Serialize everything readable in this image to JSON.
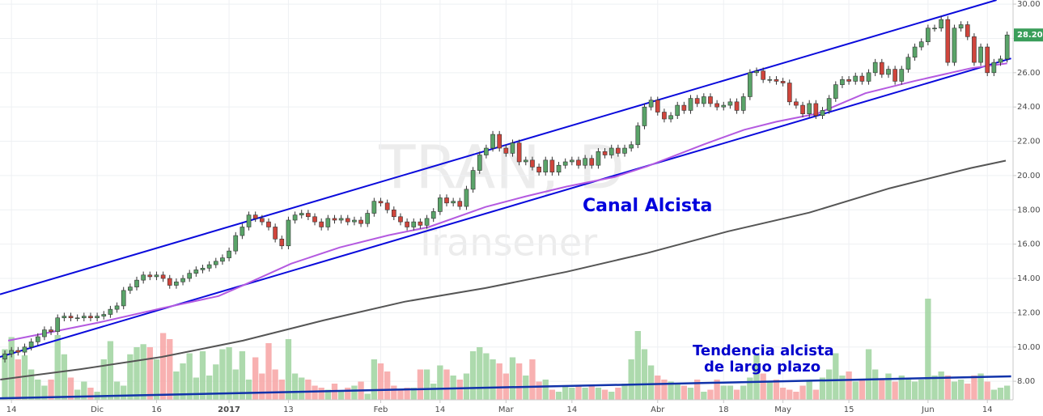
{
  "chart_data": {
    "type": "candlestick",
    "watermark": {
      "symbol": "TRAN, D",
      "name": "Transener"
    },
    "annotations": [
      {
        "text": "Canal Alcista",
        "color": "#0000dd"
      },
      {
        "text": "Tendencia alcista",
        "color": "#0000cc"
      },
      {
        "text": "de largo plazo",
        "color": "#0000cc"
      }
    ],
    "xlim": [
      -0.74,
      152.9
    ],
    "ylim": [
      6.92,
      30.24
    ],
    "volume_lim": [
      0,
      100
    ],
    "grid": true,
    "up_color": "#5aa469",
    "down_color": "#d0453c",
    "wick_color": "#333333",
    "volume_up_color": "#9fd39f",
    "volume_down_color": "#f7a3a3",
    "xticks": [
      {
        "value": 1,
        "label": "14"
      },
      {
        "value": 14,
        "label": "Dic"
      },
      {
        "value": 23,
        "label": "16"
      },
      {
        "value": 34,
        "label": "2017"
      },
      {
        "value": 43,
        "label": "13"
      },
      {
        "value": 57,
        "label": "Feb"
      },
      {
        "value": 66,
        "label": "14"
      },
      {
        "value": 76,
        "label": "Mar"
      },
      {
        "value": 86,
        "label": "14"
      },
      {
        "value": 99,
        "label": "Abr"
      },
      {
        "value": 109,
        "label": "18"
      },
      {
        "value": 118,
        "label": "May"
      },
      {
        "value": 128,
        "label": "15"
      },
      {
        "value": 140,
        "label": "Jun"
      },
      {
        "value": 149,
        "label": "14"
      }
    ],
    "yticks": [
      {
        "value": 8,
        "label": "8.00"
      },
      {
        "value": 10,
        "label": "10.00"
      },
      {
        "value": 12,
        "label": "12.00"
      },
      {
        "value": 14,
        "label": "14.00"
      },
      {
        "value": 16,
        "label": "16.00"
      },
      {
        "value": 18,
        "label": "18.00"
      },
      {
        "value": 20,
        "label": "20.00"
      },
      {
        "value": 22,
        "label": "22.00"
      },
      {
        "value": 24,
        "label": "24.00"
      },
      {
        "value": 26,
        "label": "26.00"
      },
      {
        "value": 28,
        "label": "28.00"
      },
      {
        "value": 30,
        "label": "30.00"
      }
    ],
    "last_price": {
      "value": 28.2,
      "label": "28.20",
      "color": "#3a9e5a"
    },
    "candles": [
      [
        9.3,
        9.8,
        9.1,
        9.6
      ],
      [
        9.6,
        10.0,
        9.4,
        9.8
      ],
      [
        9.8,
        10.0,
        9.5,
        9.7
      ],
      [
        9.7,
        10.2,
        9.5,
        10.0
      ],
      [
        10.0,
        10.5,
        9.8,
        10.3
      ],
      [
        10.3,
        10.8,
        10.1,
        10.6
      ],
      [
        10.6,
        11.2,
        10.4,
        11.0
      ],
      [
        11.0,
        11.2,
        10.7,
        10.9
      ],
      [
        10.9,
        11.9,
        10.7,
        11.7
      ],
      [
        11.7,
        12.0,
        11.5,
        11.8
      ],
      [
        11.8,
        12.0,
        11.5,
        11.7
      ],
      [
        11.7,
        11.9,
        11.5,
        11.7
      ],
      [
        11.7,
        12.0,
        11.5,
        11.8
      ],
      [
        11.8,
        12.0,
        11.5,
        11.7
      ],
      [
        11.7,
        12.0,
        11.5,
        11.8
      ],
      [
        11.8,
        12.1,
        11.6,
        11.9
      ],
      [
        11.9,
        12.4,
        11.7,
        12.2
      ],
      [
        12.2,
        12.6,
        12.0,
        12.4
      ],
      [
        12.4,
        13.5,
        12.2,
        13.3
      ],
      [
        13.3,
        13.7,
        13.1,
        13.5
      ],
      [
        13.5,
        14.1,
        13.3,
        13.9
      ],
      [
        13.9,
        14.4,
        13.7,
        14.2
      ],
      [
        14.2,
        14.4,
        13.9,
        14.1
      ],
      [
        14.1,
        14.4,
        13.9,
        14.2
      ],
      [
        14.2,
        14.4,
        13.8,
        14.0
      ],
      [
        14.0,
        14.2,
        13.4,
        13.6
      ],
      [
        13.6,
        14.0,
        13.4,
        13.8
      ],
      [
        13.8,
        14.2,
        13.6,
        14.0
      ],
      [
        14.0,
        14.5,
        13.8,
        14.3
      ],
      [
        14.3,
        14.7,
        14.1,
        14.5
      ],
      [
        14.5,
        14.8,
        14.3,
        14.6
      ],
      [
        14.6,
        15.0,
        14.4,
        14.8
      ],
      [
        14.8,
        15.2,
        14.6,
        15.0
      ],
      [
        15.0,
        15.4,
        14.8,
        15.2
      ],
      [
        15.2,
        15.8,
        15.0,
        15.6
      ],
      [
        15.6,
        16.7,
        15.4,
        16.5
      ],
      [
        16.5,
        17.2,
        16.3,
        17.0
      ],
      [
        17.0,
        17.9,
        16.8,
        17.7
      ],
      [
        17.7,
        17.9,
        17.3,
        17.5
      ],
      [
        17.5,
        17.7,
        17.1,
        17.3
      ],
      [
        17.3,
        17.5,
        16.8,
        17.0
      ],
      [
        17.0,
        17.2,
        16.1,
        16.3
      ],
      [
        16.3,
        16.5,
        15.7,
        15.9
      ],
      [
        15.9,
        17.6,
        15.7,
        17.4
      ],
      [
        17.4,
        17.9,
        17.2,
        17.7
      ],
      [
        17.7,
        18.0,
        17.5,
        17.8
      ],
      [
        17.8,
        18.0,
        17.4,
        17.6
      ],
      [
        17.6,
        17.8,
        17.1,
        17.3
      ],
      [
        17.3,
        17.5,
        16.8,
        17.0
      ],
      [
        17.0,
        17.7,
        16.8,
        17.5
      ],
      [
        17.5,
        17.7,
        17.2,
        17.4
      ],
      [
        17.4,
        17.7,
        17.2,
        17.5
      ],
      [
        17.5,
        17.7,
        17.1,
        17.3
      ],
      [
        17.3,
        17.6,
        17.1,
        17.4
      ],
      [
        17.4,
        17.6,
        17.0,
        17.2
      ],
      [
        17.2,
        18.0,
        17.0,
        17.8
      ],
      [
        17.8,
        18.7,
        17.6,
        18.5
      ],
      [
        18.5,
        18.7,
        18.2,
        18.4
      ],
      [
        18.4,
        18.6,
        17.8,
        18.0
      ],
      [
        18.0,
        18.2,
        17.4,
        17.6
      ],
      [
        17.6,
        17.8,
        17.1,
        17.3
      ],
      [
        17.3,
        17.5,
        16.8,
        17.0
      ],
      [
        17.0,
        17.5,
        16.8,
        17.3
      ],
      [
        17.3,
        17.5,
        16.9,
        17.1
      ],
      [
        17.1,
        17.7,
        16.9,
        17.5
      ],
      [
        17.5,
        18.1,
        17.3,
        17.9
      ],
      [
        17.9,
        18.9,
        17.7,
        18.7
      ],
      [
        18.7,
        18.9,
        18.2,
        18.4
      ],
      [
        18.4,
        18.7,
        18.2,
        18.5
      ],
      [
        18.5,
        18.7,
        18.0,
        18.2
      ],
      [
        18.2,
        19.4,
        18.0,
        19.2
      ],
      [
        19.2,
        20.5,
        19.0,
        20.3
      ],
      [
        20.3,
        21.4,
        20.1,
        21.2
      ],
      [
        21.2,
        21.8,
        21.0,
        21.6
      ],
      [
        21.6,
        22.6,
        21.4,
        22.4
      ],
      [
        22.4,
        22.6,
        21.4,
        21.6
      ],
      [
        21.6,
        21.8,
        21.1,
        21.3
      ],
      [
        21.3,
        22.1,
        21.1,
        21.9
      ],
      [
        21.9,
        22.1,
        20.6,
        20.8
      ],
      [
        20.8,
        21.1,
        20.6,
        20.9
      ],
      [
        20.9,
        21.1,
        20.3,
        20.5
      ],
      [
        20.5,
        20.7,
        20.0,
        20.2
      ],
      [
        20.2,
        21.1,
        20.0,
        20.9
      ],
      [
        20.9,
        21.1,
        20.0,
        20.2
      ],
      [
        20.2,
        20.8,
        20.0,
        20.6
      ],
      [
        20.6,
        21.0,
        20.4,
        20.8
      ],
      [
        20.8,
        21.1,
        20.6,
        20.9
      ],
      [
        20.9,
        21.1,
        20.4,
        20.6
      ],
      [
        20.6,
        21.2,
        20.4,
        21.0
      ],
      [
        21.0,
        21.2,
        20.4,
        20.6
      ],
      [
        20.6,
        21.6,
        20.4,
        21.4
      ],
      [
        21.4,
        21.6,
        21.0,
        21.2
      ],
      [
        21.2,
        21.8,
        21.0,
        21.6
      ],
      [
        21.6,
        21.8,
        21.1,
        21.3
      ],
      [
        21.3,
        21.8,
        21.1,
        21.6
      ],
      [
        21.6,
        22.0,
        21.4,
        21.8
      ],
      [
        21.8,
        23.1,
        21.6,
        22.9
      ],
      [
        22.9,
        24.2,
        22.7,
        24.0
      ],
      [
        24.0,
        24.6,
        23.8,
        24.4
      ],
      [
        24.4,
        24.6,
        23.5,
        23.7
      ],
      [
        23.7,
        23.9,
        23.1,
        23.3
      ],
      [
        23.3,
        23.7,
        23.1,
        23.5
      ],
      [
        23.5,
        24.3,
        23.3,
        24.1
      ],
      [
        24.1,
        24.3,
        23.6,
        23.8
      ],
      [
        23.8,
        24.7,
        23.6,
        24.5
      ],
      [
        24.5,
        24.7,
        24.0,
        24.2
      ],
      [
        24.2,
        24.8,
        24.0,
        24.6
      ],
      [
        24.6,
        24.8,
        24.0,
        24.2
      ],
      [
        24.2,
        24.4,
        23.8,
        24.0
      ],
      [
        24.0,
        24.3,
        23.8,
        24.1
      ],
      [
        24.1,
        24.5,
        23.9,
        24.3
      ],
      [
        24.3,
        24.5,
        23.6,
        23.8
      ],
      [
        23.8,
        24.8,
        23.6,
        24.6
      ],
      [
        24.6,
        26.2,
        24.4,
        26.0
      ],
      [
        26.0,
        26.3,
        25.8,
        26.1
      ],
      [
        26.1,
        26.3,
        25.4,
        25.6
      ],
      [
        25.6,
        25.8,
        25.4,
        25.6
      ],
      [
        25.6,
        25.8,
        25.3,
        25.5
      ],
      [
        25.5,
        25.7,
        25.2,
        25.4
      ],
      [
        25.4,
        25.6,
        24.1,
        24.3
      ],
      [
        24.3,
        24.5,
        23.9,
        24.1
      ],
      [
        24.1,
        24.3,
        23.4,
        23.6
      ],
      [
        23.6,
        24.4,
        23.4,
        24.2
      ],
      [
        24.2,
        24.4,
        23.3,
        23.5
      ],
      [
        23.5,
        24.0,
        23.3,
        23.8
      ],
      [
        23.8,
        24.7,
        23.6,
        24.5
      ],
      [
        24.5,
        25.5,
        24.3,
        25.3
      ],
      [
        25.3,
        25.8,
        25.1,
        25.6
      ],
      [
        25.6,
        25.8,
        25.3,
        25.5
      ],
      [
        25.5,
        26.0,
        25.3,
        25.8
      ],
      [
        25.8,
        26.0,
        25.3,
        25.5
      ],
      [
        25.5,
        26.2,
        25.3,
        26.0
      ],
      [
        26.0,
        26.8,
        25.8,
        26.6
      ],
      [
        26.6,
        26.8,
        25.7,
        25.9
      ],
      [
        25.9,
        26.4,
        25.7,
        26.2
      ],
      [
        26.2,
        26.4,
        25.3,
        25.5
      ],
      [
        25.5,
        26.4,
        25.3,
        26.2
      ],
      [
        26.2,
        27.1,
        26.0,
        26.9
      ],
      [
        26.9,
        27.7,
        26.7,
        27.5
      ],
      [
        27.5,
        28.0,
        27.3,
        27.8
      ],
      [
        27.8,
        28.8,
        27.6,
        28.6
      ],
      [
        28.6,
        28.8,
        28.4,
        28.6
      ],
      [
        28.6,
        29.3,
        28.4,
        29.1
      ],
      [
        29.1,
        29.3,
        26.4,
        26.6
      ],
      [
        26.6,
        28.8,
        26.4,
        28.6
      ],
      [
        28.6,
        29.0,
        28.4,
        28.8
      ],
      [
        28.8,
        29.0,
        27.9,
        28.1
      ],
      [
        28.1,
        28.3,
        26.4,
        26.6
      ],
      [
        26.6,
        27.7,
        26.4,
        27.5
      ],
      [
        27.5,
        27.7,
        25.8,
        26.0
      ],
      [
        26.0,
        26.8,
        25.8,
        26.6
      ],
      [
        26.6,
        27.0,
        26.4,
        26.8
      ],
      [
        26.8,
        28.4,
        26.6,
        28.2
      ]
    ],
    "volumes": [
      50,
      62,
      40,
      44,
      30,
      20,
      14,
      20,
      64,
      45,
      22,
      10,
      18,
      12,
      8,
      40,
      58,
      18,
      14,
      45,
      52,
      55,
      52,
      40,
      66,
      60,
      28,
      36,
      46,
      22,
      48,
      24,
      35,
      50,
      52,
      30,
      48,
      20,
      42,
      26,
      56,
      30,
      20,
      60,
      26,
      22,
      20,
      14,
      12,
      10,
      16,
      8,
      12,
      14,
      18,
      6,
      40,
      36,
      28,
      14,
      10,
      12,
      12,
      30,
      30,
      16,
      34,
      30,
      24,
      20,
      26,
      48,
      52,
      46,
      40,
      36,
      26,
      42,
      36,
      24,
      40,
      18,
      20,
      10,
      8,
      14,
      12,
      14,
      12,
      14,
      12,
      10,
      8,
      12,
      16,
      40,
      68,
      50,
      34,
      24,
      20,
      18,
      16,
      14,
      12,
      20,
      8,
      10,
      20,
      14,
      14,
      10,
      14,
      22,
      44,
      26,
      18,
      20,
      12,
      10,
      8,
      14,
      18,
      10,
      22,
      30,
      46,
      24,
      28,
      18,
      20,
      50,
      30,
      20,
      26,
      18,
      24,
      20,
      18,
      20,
      100,
      24,
      28,
      24,
      18,
      20,
      16,
      24,
      26,
      18,
      10,
      12,
      14
    ],
    "lines": [
      {
        "kind": "trend",
        "color": "#0a0adc",
        "width": 2,
        "points": [
          [
            -0.74,
            13.07
          ],
          [
            150.4,
            30.24
          ]
        ]
      },
      {
        "kind": "trend",
        "color": "#0a0adc",
        "width": 2,
        "points": [
          [
            -0.74,
            9.42
          ],
          [
            152.6,
            26.83
          ]
        ]
      },
      {
        "kind": "trend",
        "color": "#1133aa",
        "width": 2.5,
        "points": [
          [
            -0.74,
            7.01
          ],
          [
            152.6,
            8.29
          ]
        ]
      },
      {
        "kind": "ma",
        "color": "#555555",
        "width": 2,
        "points": [
          [
            -0.7,
            8.1
          ],
          [
            11.5,
            8.71
          ],
          [
            23.8,
            9.42
          ],
          [
            36.1,
            10.37
          ],
          [
            48.3,
            11.55
          ],
          [
            60.6,
            12.64
          ],
          [
            72.9,
            13.44
          ],
          [
            85.2,
            14.39
          ],
          [
            97.4,
            15.48
          ],
          [
            109.7,
            16.75
          ],
          [
            122,
            17.84
          ],
          [
            134.2,
            19.26
          ],
          [
            146.5,
            20.44
          ],
          [
            151.8,
            20.87
          ]
        ]
      },
      {
        "kind": "ma",
        "color": "#b45ae0",
        "width": 2,
        "points": [
          [
            0.5,
            10.37
          ],
          [
            6.6,
            10.84
          ],
          [
            14,
            11.41
          ],
          [
            23.8,
            12.26
          ],
          [
            32.4,
            12.97
          ],
          [
            36.1,
            13.59
          ],
          [
            43.4,
            14.86
          ],
          [
            50.8,
            15.81
          ],
          [
            58.2,
            16.52
          ],
          [
            64.3,
            17.0
          ],
          [
            72.9,
            18.17
          ],
          [
            79,
            18.79
          ],
          [
            85.2,
            19.36
          ],
          [
            92.5,
            19.92
          ],
          [
            97.4,
            20.54
          ],
          [
            106,
            21.82
          ],
          [
            112.1,
            22.67
          ],
          [
            117,
            23.14
          ],
          [
            123.2,
            23.61
          ],
          [
            130.5,
            24.8
          ],
          [
            137.9,
            25.51
          ],
          [
            146.5,
            26.26
          ],
          [
            152,
            26.55
          ]
        ]
      }
    ]
  }
}
